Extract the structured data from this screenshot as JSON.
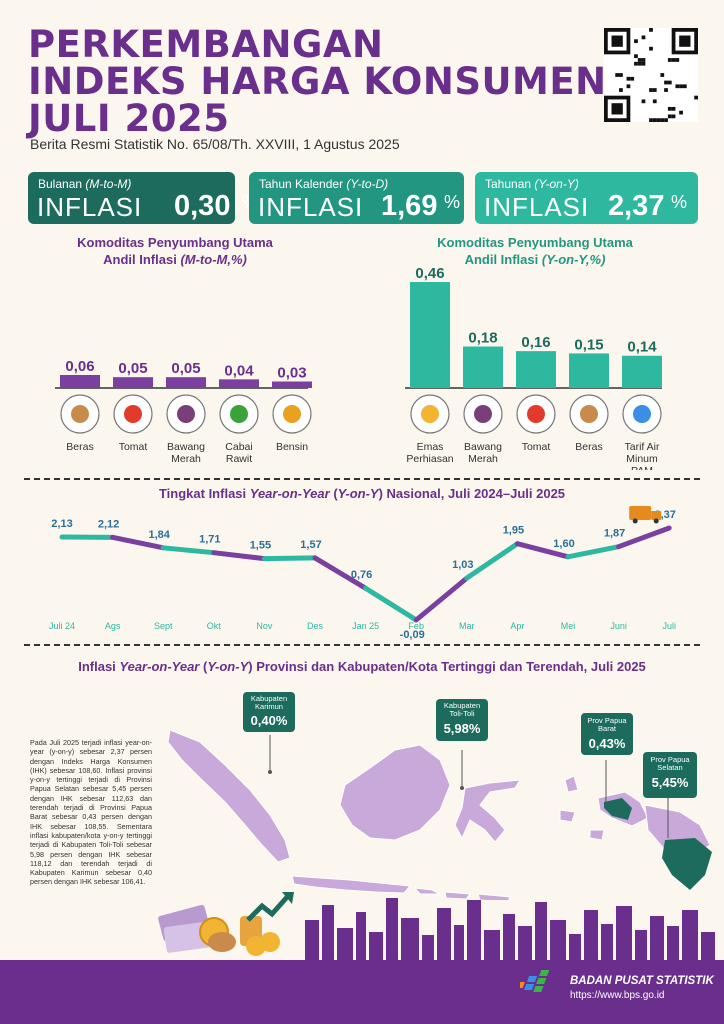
{
  "header": {
    "title_lines": [
      "PERKEMBANGAN",
      "INDEKS HARGA KONSUMEN",
      "JULI 2025"
    ],
    "subtitle": "Berita Resmi Statistik No. 65/08/Th. XXVIII, 1 Agustus 2025"
  },
  "cards": [
    {
      "label_prefix": "Bulanan ",
      "label_italic": "(M-to-M)",
      "word": "INFLASI",
      "value": "0,30",
      "unit": "%",
      "color": "#1c6b5d"
    },
    {
      "label_prefix": "Tahun Kalender ",
      "label_italic": "(Y-to-D)",
      "word": "INFLASI",
      "value": "1,69",
      "unit": "%",
      "color": "#239681"
    },
    {
      "label_prefix": "Tahunan ",
      "label_italic": "(Y-on-Y)",
      "word": "INFLASI",
      "value": "2,37",
      "unit": "%",
      "color": "#2eb8a0"
    }
  ],
  "mtm_section": {
    "title_line1": "Komoditas Penyumbang Utama",
    "title_line2_prefix": "Andil Inflasi ",
    "title_line2_italic": "(M-to-M,%)",
    "title_color": "#6a2f8c"
  },
  "yoy_section": {
    "title_line1": "Komoditas Penyumbang Utama",
    "title_line2_prefix": "Andil Inflasi ",
    "title_line2_italic": "(Y-on-Y,%)",
    "title_color": "#239681"
  },
  "line_section": {
    "title_prefix": "Tingkat Inflasi ",
    "title_italic1": "Year-on-Year",
    "title_mid": " (",
    "title_italic2": "Y-on-Y",
    "title_suffix": ") Nasional, Juli 2024–Juli 2025"
  },
  "map_section": {
    "title_prefix": "Inflasi ",
    "title_italic1": "Year-on-Year",
    "title_mid": " (",
    "title_italic2": "Y-on-Y",
    "title_suffix": ") Provinsi dan Kabupaten/Kota Tertinggi dan Terendah, Juli 2025",
    "callouts": [
      {
        "label": "Kabupaten Karimun",
        "value": "0,40%"
      },
      {
        "label": "Kabupaten Toli-Toli",
        "value": "5,98%"
      },
      {
        "label": "Prov Papua Barat",
        "value": "0,43%"
      },
      {
        "label": "Prov Papua Selatan",
        "value": "5,45%"
      }
    ],
    "paragraph": "Pada Juli 2025 terjadi inflasi year-on-year (y-on-y) sebesar 2,37 persen dengan Indeks Harga Konsumen (IHK) sebesar 108,60. Inflasi provinsi y-on-y tertinggi terjadi di Provinsi Papua Selatan sebesar 5,45 persen dengan IHK sebesar 112,63 dan terendah terjadi di Provinsi Papua Barat sebesar 0,43 persen dengan IHK sebesar 108,55. Sementara inflasi kabupaten/kota y-on-y tertinggi terjadi di Kabupaten Toli-Toli sebesar 5,98 persen dengan IHK sebesar 118,12 dan terendah terjadi di Kabupaten Karimun sebesar 0,40 persen dengan IHK sebesar 106,41."
  },
  "footer": {
    "org": "BADAN PUSAT STATISTIK",
    "url": "https://www.bps.go.id",
    "logo_text": "bps"
  },
  "colors": {
    "purple": "#6a2f8c",
    "bar_purple": "#7b3fa0",
    "teal": "#2eb8a0",
    "dark_teal": "#1c6b5d",
    "map_fill": "#c9a9d9"
  },
  "chart_data": [
    {
      "type": "bar",
      "title": "Komoditas Penyumbang Utama Andil Inflasi (M-to-M,%)",
      "categories": [
        "Beras",
        "Tomat",
        "Bawang Merah",
        "Cabai Rawit",
        "Bensin"
      ],
      "values": [
        0.06,
        0.05,
        0.05,
        0.04,
        0.03
      ],
      "value_labels": [
        "0,06",
        "0,05",
        "0,05",
        "0,04",
        "0,03"
      ],
      "icons": [
        "rice-sack-icon",
        "tomato-icon",
        "shallot-icon",
        "chili-icon",
        "fuel-pump-icon"
      ]
    },
    {
      "type": "bar",
      "title": "Komoditas Penyumbang Utama Andil Inflasi (Y-on-Y,%)",
      "categories": [
        "Emas Perhiasan",
        "Bawang Merah",
        "Tomat",
        "Beras",
        "Tarif Air Minum PAM"
      ],
      "values": [
        0.46,
        0.18,
        0.16,
        0.15,
        0.14
      ],
      "value_labels": [
        "0,46",
        "0,18",
        "0,16",
        "0,15",
        "0,14"
      ],
      "icons": [
        "gold-jewelry-icon",
        "shallot-icon",
        "tomato-icon",
        "rice-sack-icon",
        "water-tap-icon"
      ]
    },
    {
      "type": "line",
      "title": "Tingkat Inflasi Year-on-Year (Y-on-Y) Nasional, Juli 2024–Juli 2025",
      "categories": [
        "Juli 24",
        "Ags",
        "Sept",
        "Okt",
        "Nov",
        "Des",
        "Jan 25",
        "Feb",
        "Mar",
        "Apr",
        "Mei",
        "Juni",
        "Juli"
      ],
      "values": [
        2.13,
        2.12,
        1.84,
        1.71,
        1.55,
        1.57,
        0.76,
        -0.09,
        1.03,
        1.95,
        1.6,
        1.87,
        2.37
      ],
      "value_labels": [
        "2,13",
        "2,12",
        "1,84",
        "1,71",
        "1,55",
        "1,57",
        "0,76",
        "-0,09",
        "1,03",
        "1,95",
        "1,60",
        "1,87",
        "2,37"
      ]
    }
  ]
}
